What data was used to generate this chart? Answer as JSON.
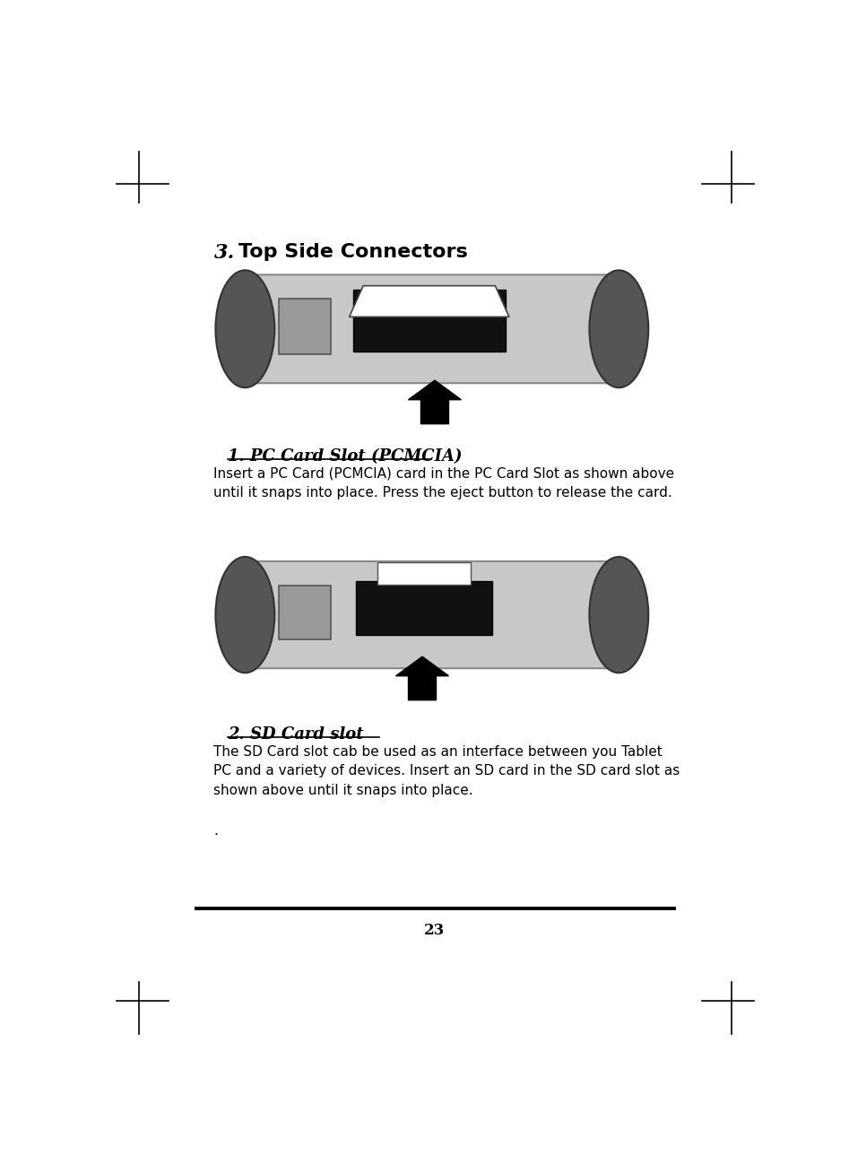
{
  "bg_color": "#ffffff",
  "page_number": "23",
  "heading_num": "3.",
  "heading_text": "Top Side Connectors",
  "section1_title": "1. PC Card Slot (PCMCIA)",
  "section1_body": "Insert a PC Card (PCMCIA) card in the PC Card Slot as shown above\nuntil it snaps into place. Press the eject button to release the card.",
  "section2_title": "2. SD Card slot",
  "section2_body": "The SD Card slot cab be used as an interface between you Tablet\nPC and a variety of devices. Insert an SD card in the SD card slot as\nshown above until it snaps into place.",
  "section2_dot": ".",
  "text_color": "#000000",
  "device_body_color": "#c8c8c8",
  "device_edge_color": "#888888",
  "device_wheel_color": "#555555",
  "device_wheel_edge": "#333333",
  "slot_black": "#111111",
  "card_white": "#ffffff"
}
